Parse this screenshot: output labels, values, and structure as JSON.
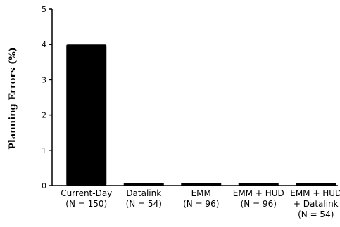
{
  "chart_data": {
    "type": "bar",
    "title": "",
    "xlabel": "",
    "ylabel": "Planning Errors (%)",
    "ylim": [
      0,
      5
    ],
    "yticks": [
      "0",
      "1",
      "2",
      "3",
      "4",
      "5"
    ],
    "categories": [
      [
        "Current-Day",
        "(N = 150)"
      ],
      [
        "Datalink",
        "(N = 54)"
      ],
      [
        "EMM",
        "(N = 96)"
      ],
      [
        "EMM + HUD",
        "(N = 96)"
      ],
      [
        "EMM + HUD",
        "+ Datalink",
        "(N = 54)"
      ]
    ],
    "values": [
      4,
      0,
      0,
      0,
      0
    ],
    "grid": false,
    "legend": "none",
    "bar_color": "#000000"
  }
}
